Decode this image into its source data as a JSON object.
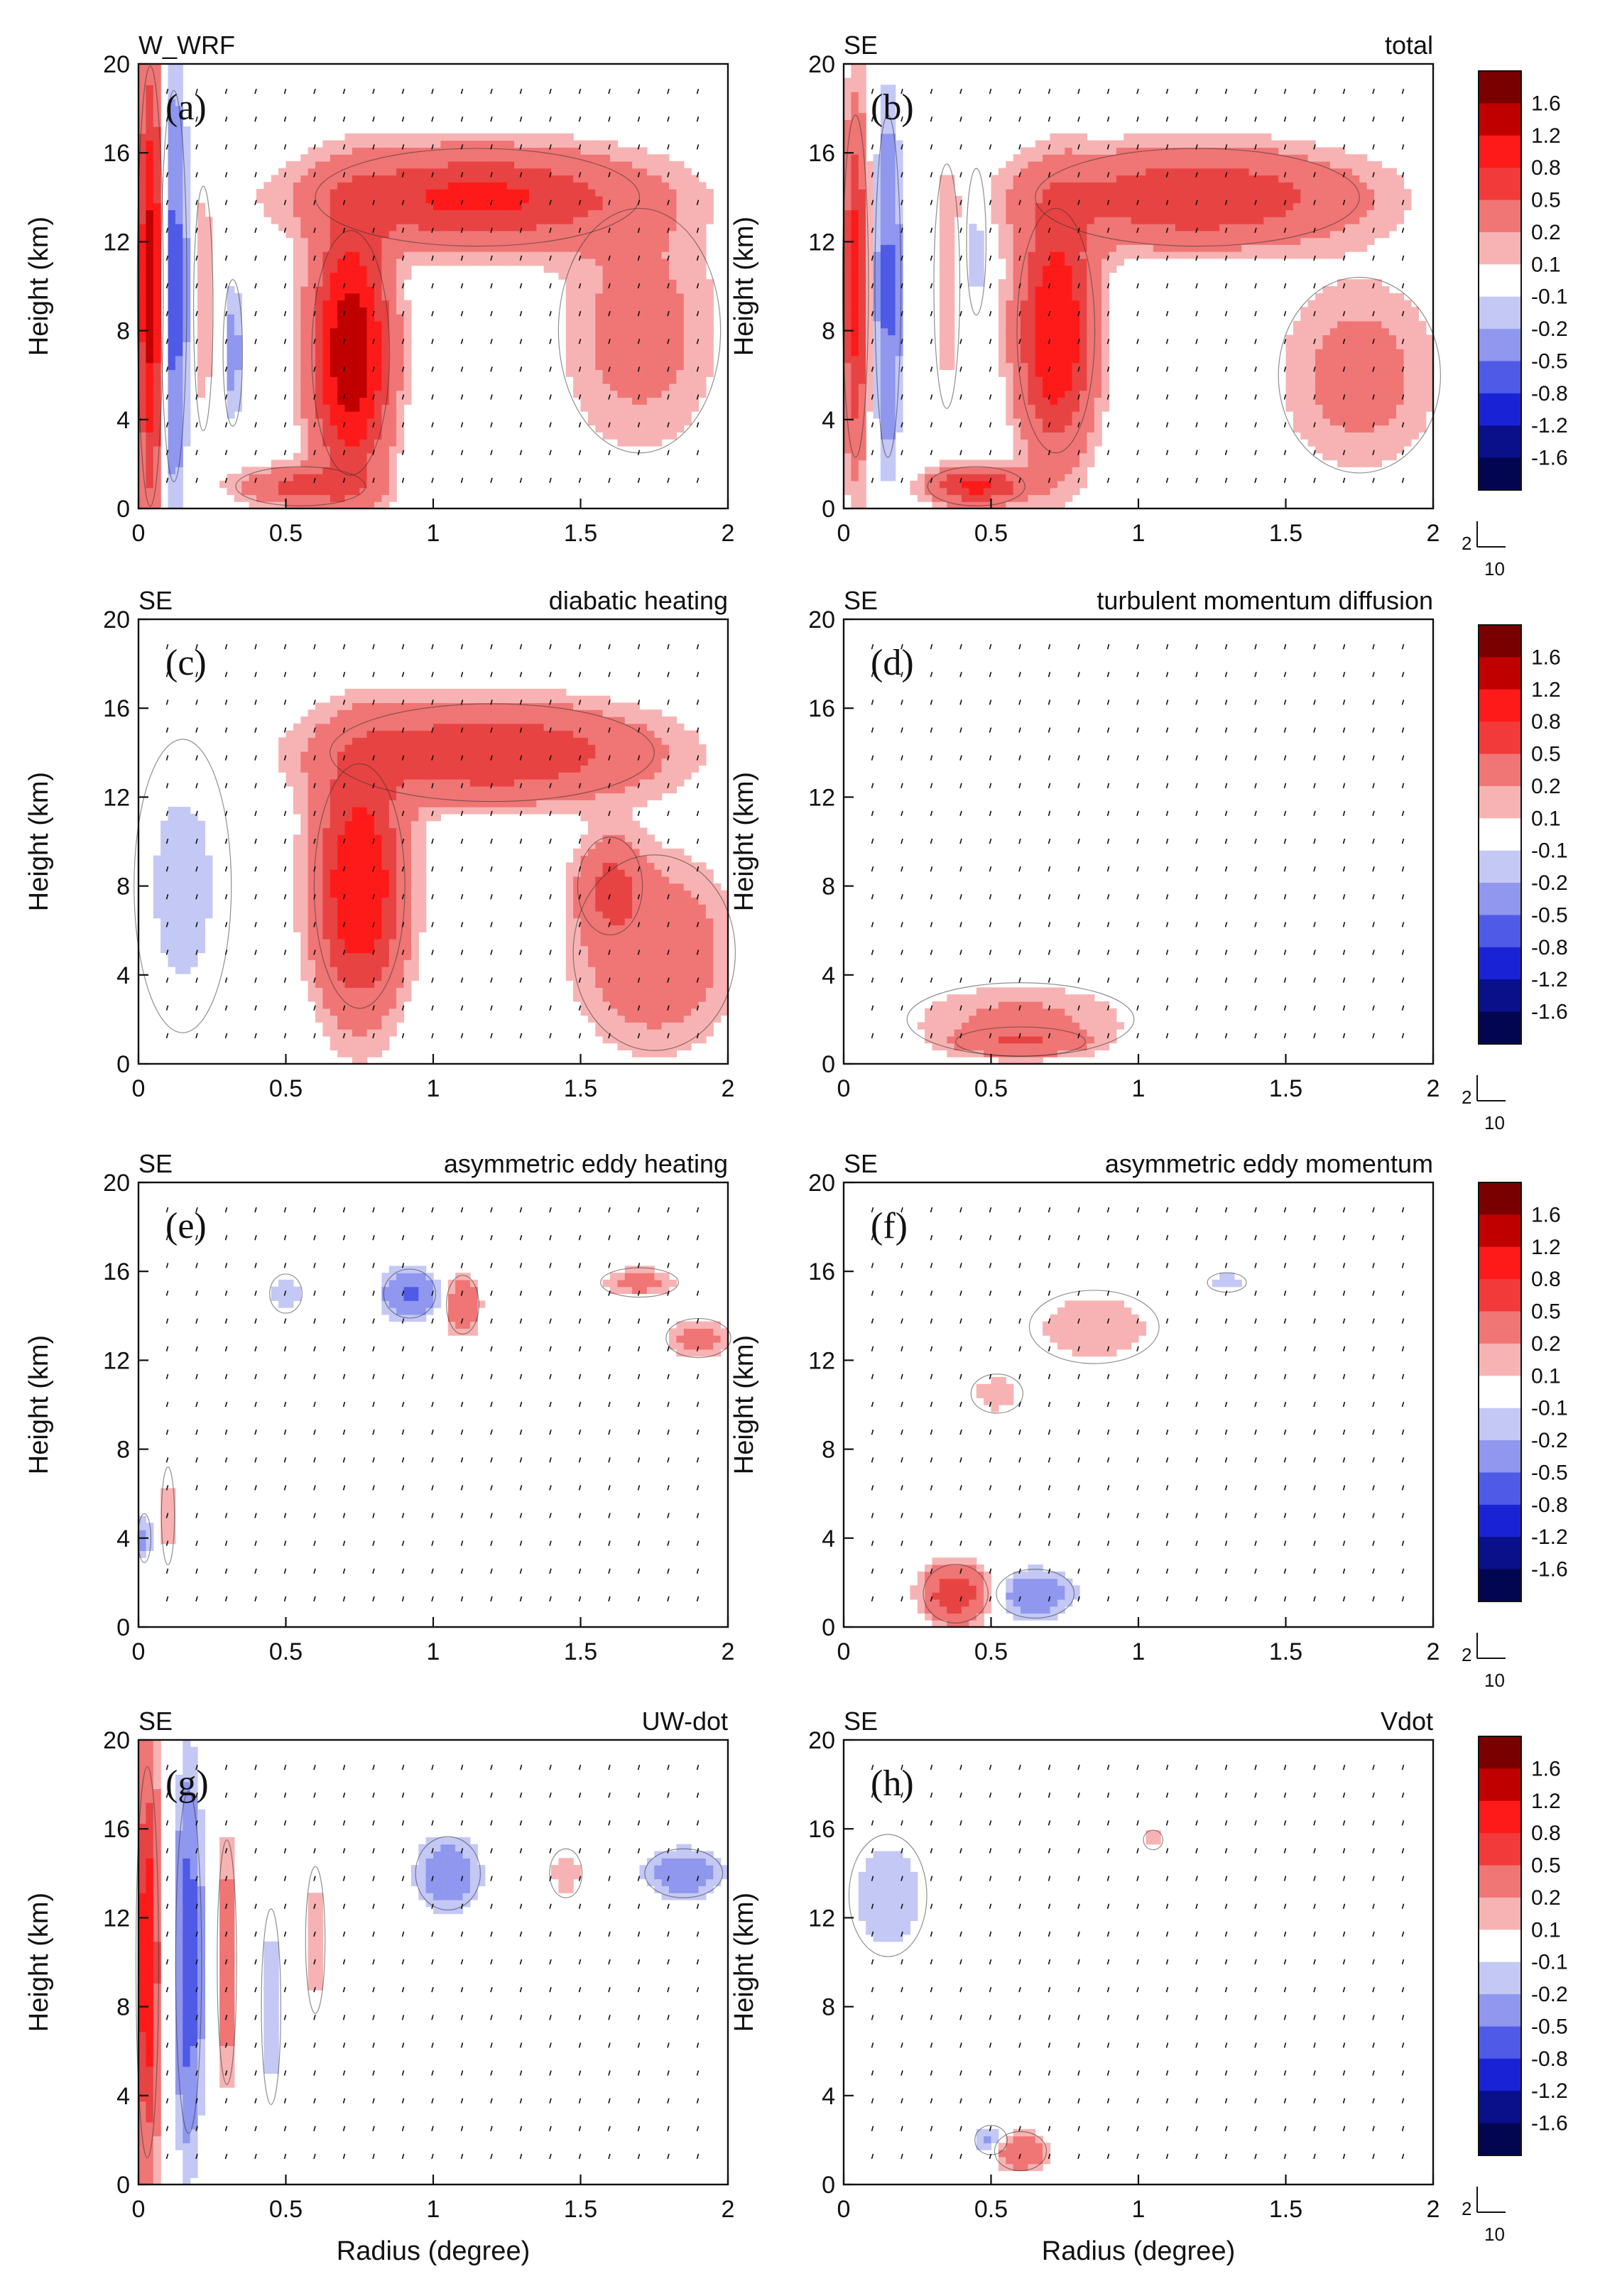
{
  "figure": {
    "x_axis_title": "Radius (degree)",
    "y_axis_title": "Height (km)",
    "colorbar_levels": [
      "1.6",
      "1.2",
      "0.8",
      "0.5",
      "0.2",
      "0.1",
      "-0.1",
      "-0.2",
      "-0.5",
      "-0.8",
      "-1.2",
      "-1.6"
    ],
    "colorbar_colors": [
      "#7a0000",
      "#c00000",
      "#ff1a1a",
      "#f23a3a",
      "#f07575",
      "#f7b3b3",
      "#ffffff",
      "#c4c8f5",
      "#8f97ee",
      "#4f5ae6",
      "#1a22d6",
      "#0a0f8a",
      "#020650"
    ],
    "reference_vector": {
      "vertical": "2",
      "horizontal": "10"
    }
  },
  "chart_data": [
    {
      "type": "contour",
      "panel": "(a)",
      "subject": "W_WRF",
      "field": "",
      "xlabel": "Radius (degree)",
      "ylabel": "Height (km)",
      "xlim": [
        0,
        2
      ],
      "ylim": [
        0,
        20
      ],
      "xticks": [
        "0",
        "0.5",
        "1",
        "1.5",
        "2"
      ],
      "yticks": [
        "0",
        "4",
        "8",
        "12",
        "16",
        "20"
      ],
      "features": [
        {
          "sign": "pos",
          "r": 0.04,
          "z": 10,
          "dr": 0.04,
          "dz": 9,
          "amp": 1.4
        },
        {
          "sign": "neg",
          "r": 0.12,
          "z": 10,
          "dr": 0.04,
          "dz": 8,
          "amp": 0.7
        },
        {
          "sign": "pos",
          "r": 0.22,
          "z": 9,
          "dr": 0.03,
          "dz": 5,
          "amp": 0.2
        },
        {
          "sign": "neg",
          "r": 0.32,
          "z": 7,
          "dr": 0.03,
          "dz": 3,
          "amp": 0.3
        },
        {
          "sign": "pos",
          "r": 0.72,
          "z": 7,
          "dr": 0.12,
          "dz": 5,
          "amp": 1.6
        },
        {
          "sign": "pos",
          "r": 1.15,
          "z": 14,
          "dr": 0.5,
          "dz": 2,
          "amp": 0.9
        },
        {
          "sign": "pos",
          "r": 1.7,
          "z": 8,
          "dr": 0.25,
          "dz": 5,
          "amp": 0.3
        },
        {
          "sign": "pos",
          "r": 0.55,
          "z": 1,
          "dr": 0.2,
          "dz": 0.8,
          "amp": 0.6
        }
      ]
    },
    {
      "type": "contour",
      "panel": "(b)",
      "subject": "SE",
      "field": "total",
      "xlabel": "Radius (degree)",
      "ylabel": "Height (km)",
      "xlim": [
        0,
        2
      ],
      "ylim": [
        0,
        20
      ],
      "xticks": [
        "0",
        "0.5",
        "1",
        "1.5",
        "2"
      ],
      "yticks": [
        "0",
        "4",
        "8",
        "12",
        "16",
        "20"
      ],
      "features": [
        {
          "sign": "pos",
          "r": 0.04,
          "z": 10,
          "dr": 0.04,
          "dz": 7,
          "amp": 1.0
        },
        {
          "sign": "neg",
          "r": 0.15,
          "z": 10,
          "dr": 0.04,
          "dz": 7,
          "amp": 0.6
        },
        {
          "sign": "pos",
          "r": 0.35,
          "z": 10,
          "dr": 0.04,
          "dz": 5,
          "amp": 0.2
        },
        {
          "sign": "neg",
          "r": 0.45,
          "z": 12,
          "dr": 0.03,
          "dz": 3,
          "amp": 0.2
        },
        {
          "sign": "pos",
          "r": 0.72,
          "z": 8,
          "dr": 0.12,
          "dz": 5,
          "amp": 1.2
        },
        {
          "sign": "pos",
          "r": 1.2,
          "z": 14,
          "dr": 0.5,
          "dz": 2,
          "amp": 0.8
        },
        {
          "sign": "pos",
          "r": 1.75,
          "z": 6,
          "dr": 0.25,
          "dz": 4,
          "amp": 0.3
        },
        {
          "sign": "pos",
          "r": 0.45,
          "z": 1,
          "dr": 0.15,
          "dz": 0.8,
          "amp": 0.9
        }
      ]
    },
    {
      "type": "contour",
      "panel": "(c)",
      "subject": "SE",
      "field": "diabatic heating",
      "xlabel": "Radius (degree)",
      "ylabel": "Height (km)",
      "xlim": [
        0,
        2
      ],
      "ylim": [
        0,
        20
      ],
      "xticks": [
        "0",
        "0.5",
        "1",
        "1.5",
        "2"
      ],
      "yticks": [
        "0",
        "4",
        "8",
        "12",
        "16",
        "20"
      ],
      "features": [
        {
          "sign": "neg",
          "r": 0.15,
          "z": 8,
          "dr": 0.15,
          "dz": 6,
          "amp": 0.15
        },
        {
          "sign": "pos",
          "r": 0.75,
          "z": 8,
          "dr": 0.14,
          "dz": 5,
          "amp": 1.2
        },
        {
          "sign": "pos",
          "r": 1.2,
          "z": 14,
          "dr": 0.5,
          "dz": 2,
          "amp": 0.8
        },
        {
          "sign": "pos",
          "r": 1.75,
          "z": 5,
          "dr": 0.25,
          "dz": 4,
          "amp": 0.4
        },
        {
          "sign": "pos",
          "r": 1.6,
          "z": 8,
          "dr": 0.1,
          "dz": 2,
          "amp": 0.5
        }
      ]
    },
    {
      "type": "contour",
      "panel": "(d)",
      "subject": "SE",
      "field": "turbulent momentum diffusion",
      "xlabel": "Radius (degree)",
      "ylabel": "Height (km)",
      "xlim": [
        0,
        2
      ],
      "ylim": [
        0,
        20
      ],
      "xticks": [
        "0",
        "0.5",
        "1",
        "1.5",
        "2"
      ],
      "yticks": [
        "0",
        "4",
        "8",
        "12",
        "16",
        "20"
      ],
      "features": [
        {
          "sign": "pos",
          "r": 0.6,
          "z": 2,
          "dr": 0.35,
          "dz": 1.5,
          "amp": 0.25
        },
        {
          "sign": "pos",
          "r": 0.6,
          "z": 1,
          "dr": 0.2,
          "dz": 0.6,
          "amp": 0.4
        }
      ]
    },
    {
      "type": "contour",
      "panel": "(e)",
      "subject": "SE",
      "field": "asymmetric eddy heating",
      "xlabel": "Radius (degree)",
      "ylabel": "Height (km)",
      "xlim": [
        0,
        2
      ],
      "ylim": [
        0,
        20
      ],
      "xticks": [
        "0",
        "0.5",
        "1",
        "1.5",
        "2"
      ],
      "yticks": [
        "0",
        "4",
        "8",
        "12",
        "16",
        "20"
      ],
      "features": [
        {
          "sign": "neg",
          "r": 0.92,
          "z": 15,
          "dr": 0.08,
          "dz": 1,
          "amp": 0.6
        },
        {
          "sign": "pos",
          "r": 1.1,
          "z": 14.5,
          "dr": 0.05,
          "dz": 1.2,
          "amp": 0.5
        },
        {
          "sign": "pos",
          "r": 1.7,
          "z": 15.5,
          "dr": 0.12,
          "dz": 0.6,
          "amp": 0.3
        },
        {
          "sign": "pos",
          "r": 1.9,
          "z": 13,
          "dr": 0.1,
          "dz": 0.8,
          "amp": 0.3
        },
        {
          "sign": "neg",
          "r": 0.02,
          "z": 4,
          "dr": 0.02,
          "dz": 1,
          "amp": 0.3
        },
        {
          "sign": "pos",
          "r": 0.1,
          "z": 5,
          "dr": 0.02,
          "dz": 2,
          "amp": 0.2
        },
        {
          "sign": "neg",
          "r": 0.5,
          "z": 15,
          "dr": 0.05,
          "dz": 0.8,
          "amp": 0.2
        }
      ]
    },
    {
      "type": "contour",
      "panel": "(f)",
      "subject": "SE",
      "field": "asymmetric eddy momentum",
      "xlabel": "Radius (degree)",
      "ylabel": "Height (km)",
      "xlim": [
        0,
        2
      ],
      "ylim": [
        0,
        20
      ],
      "xticks": [
        "0",
        "0.5",
        "1",
        "1.5",
        "2"
      ],
      "yticks": [
        "0",
        "4",
        "8",
        "12",
        "16",
        "20"
      ],
      "features": [
        {
          "sign": "pos",
          "r": 0.38,
          "z": 1.5,
          "dr": 0.1,
          "dz": 1.2,
          "amp": 0.8
        },
        {
          "sign": "neg",
          "r": 0.65,
          "z": 1.5,
          "dr": 0.12,
          "dz": 1,
          "amp": 0.4
        },
        {
          "sign": "pos",
          "r": 0.85,
          "z": 13.5,
          "dr": 0.2,
          "dz": 1.5,
          "amp": 0.2
        },
        {
          "sign": "pos",
          "r": 0.52,
          "z": 10.5,
          "dr": 0.08,
          "dz": 0.8,
          "amp": 0.2
        },
        {
          "sign": "neg",
          "r": 1.3,
          "z": 15.5,
          "dr": 0.06,
          "dz": 0.4,
          "amp": 0.2
        }
      ]
    },
    {
      "type": "contour",
      "panel": "(g)",
      "subject": "SE",
      "field": "UW-dot",
      "xlabel": "Radius (degree)",
      "ylabel": "Height (km)",
      "xlim": [
        0,
        2
      ],
      "ylim": [
        0,
        20
      ],
      "xticks": [
        "0",
        "0.5",
        "1",
        "1.5",
        "2"
      ],
      "yticks": [
        "0",
        "4",
        "8",
        "12",
        "16",
        "20"
      ],
      "features": [
        {
          "sign": "pos",
          "r": 0.03,
          "z": 10,
          "dr": 0.035,
          "dz": 8,
          "amp": 1.2
        },
        {
          "sign": "neg",
          "r": 0.17,
          "z": 10,
          "dr": 0.04,
          "dz": 7,
          "amp": 0.8
        },
        {
          "sign": "pos",
          "r": 0.3,
          "z": 10,
          "dr": 0.03,
          "dz": 5,
          "amp": 0.4
        },
        {
          "sign": "neg",
          "r": 0.45,
          "z": 8,
          "dr": 0.03,
          "dz": 4,
          "amp": 0.2
        },
        {
          "sign": "pos",
          "r": 0.6,
          "z": 11,
          "dr": 0.03,
          "dz": 3,
          "amp": 0.2
        },
        {
          "sign": "neg",
          "r": 1.05,
          "z": 14,
          "dr": 0.1,
          "dz": 1.5,
          "amp": 0.4
        },
        {
          "sign": "neg",
          "r": 1.85,
          "z": 14,
          "dr": 0.12,
          "dz": 1,
          "amp": 0.4
        },
        {
          "sign": "pos",
          "r": 1.45,
          "z": 14,
          "dr": 0.05,
          "dz": 1,
          "amp": 0.2
        }
      ]
    },
    {
      "type": "contour",
      "panel": "(h)",
      "subject": "SE",
      "field": "Vdot",
      "xlabel": "Radius (degree)",
      "ylabel": "Height (km)",
      "xlim": [
        0,
        2
      ],
      "ylim": [
        0,
        20
      ],
      "xticks": [
        "0",
        "0.5",
        "1",
        "1.5",
        "2"
      ],
      "yticks": [
        "0",
        "4",
        "8",
        "12",
        "16",
        "20"
      ],
      "features": [
        {
          "sign": "neg",
          "r": 0.15,
          "z": 13,
          "dr": 0.12,
          "dz": 2.5,
          "amp": 0.2
        },
        {
          "sign": "pos",
          "r": 0.6,
          "z": 1.5,
          "dr": 0.08,
          "dz": 0.8,
          "amp": 0.5
        },
        {
          "sign": "neg",
          "r": 0.5,
          "z": 2,
          "dr": 0.05,
          "dz": 0.6,
          "amp": 0.3
        },
        {
          "sign": "pos",
          "r": 1.05,
          "z": 15.5,
          "dr": 0.03,
          "dz": 0.4,
          "amp": 0.2
        }
      ]
    }
  ]
}
